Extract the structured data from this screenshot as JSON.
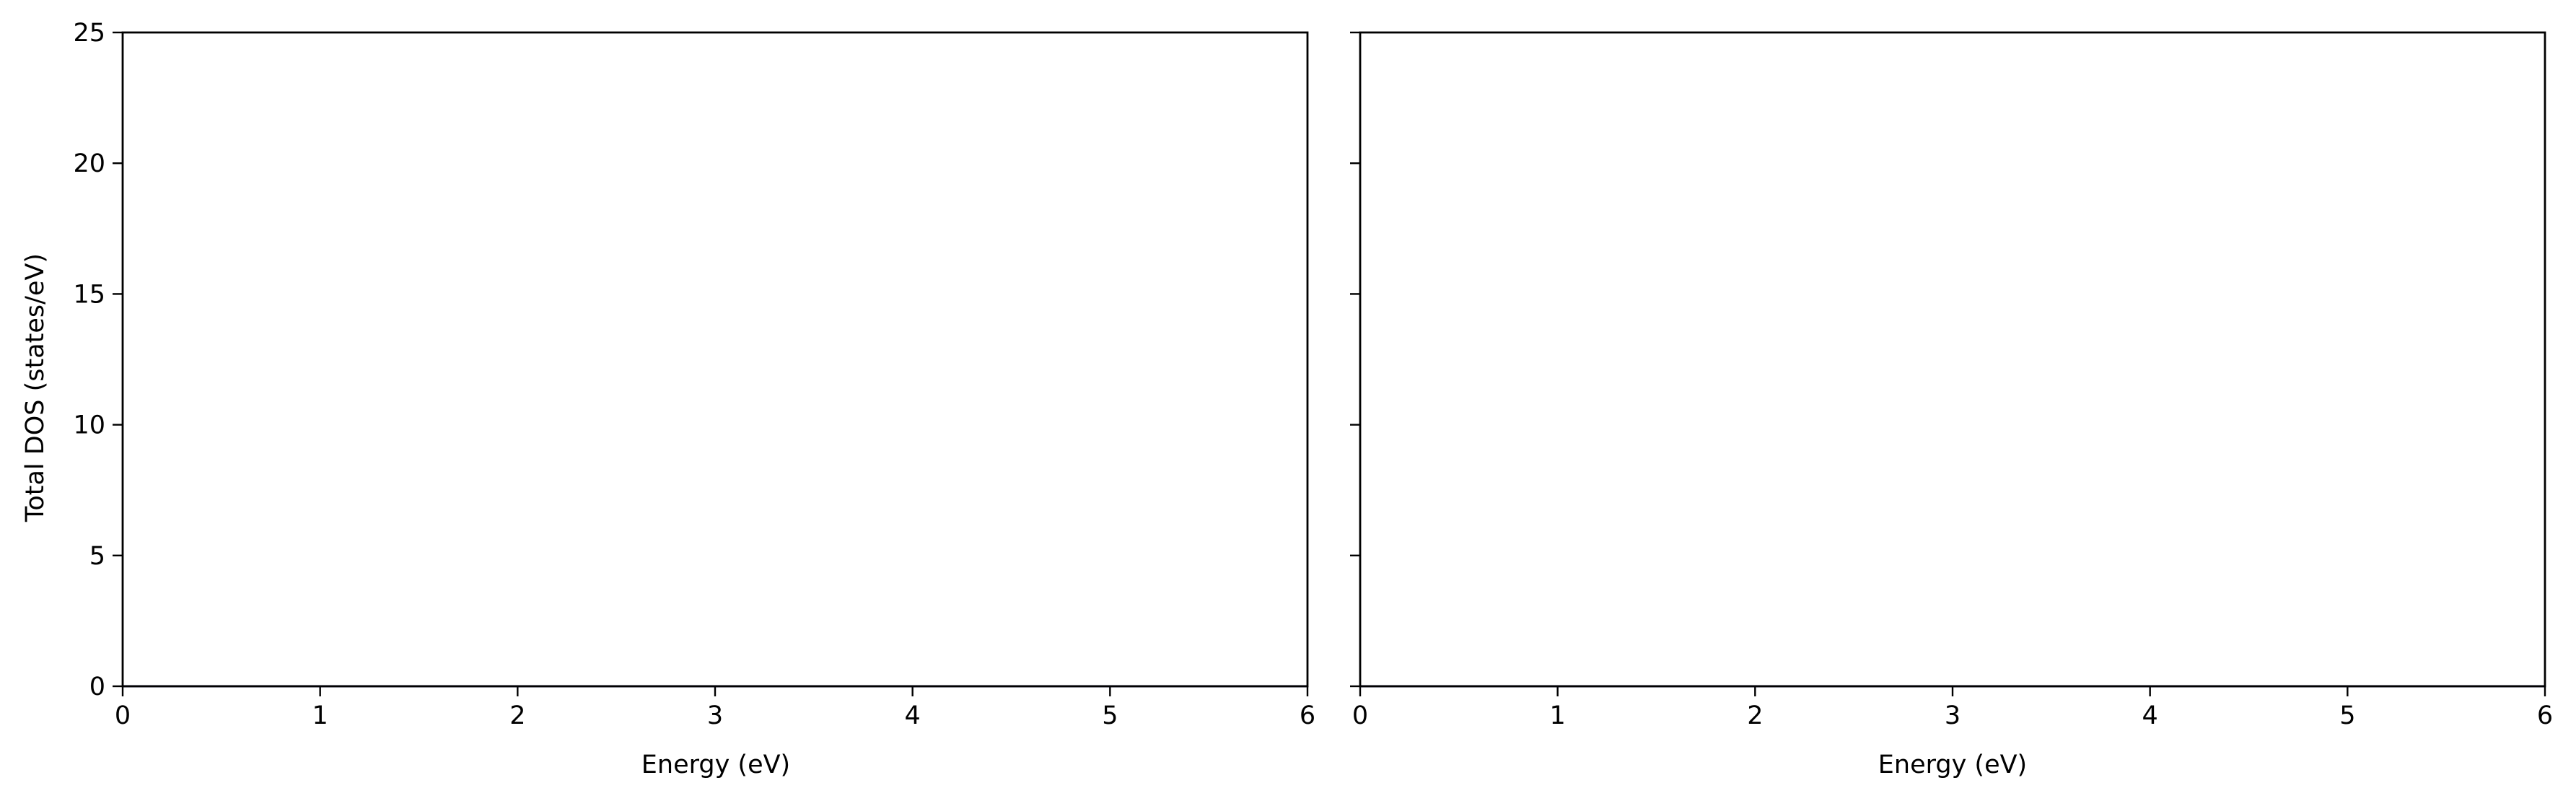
{
  "chart_data": [
    {
      "type": "line",
      "xlabel": "Energy (eV)",
      "ylabel": "Total DOS (states/eV)",
      "xlim": [
        0,
        6
      ],
      "ylim": [
        0,
        25
      ],
      "xticks": [
        "0",
        "1",
        "2",
        "3",
        "4",
        "5",
        "6"
      ],
      "yticks": [
        "0",
        "5",
        "10",
        "15",
        "20",
        "25"
      ],
      "grid": false,
      "legend": "none",
      "series": [
        {
          "color": "#1f1f7a",
          "x": [
            0,
            1,
            2,
            3,
            4,
            5,
            6
          ],
          "y": [
            0,
            0,
            0,
            0,
            0,
            0,
            0
          ]
        }
      ]
    },
    {
      "type": "line",
      "xlabel": "Energy (eV)",
      "ylabel": "",
      "xlim": [
        0,
        6
      ],
      "ylim": [
        0,
        25
      ],
      "xticks": [
        "0",
        "1",
        "2",
        "3",
        "4",
        "5",
        "6"
      ],
      "yticks": [
        "0",
        "5",
        "10",
        "15",
        "20",
        "25"
      ],
      "show_yticklabels": false,
      "grid": false,
      "legend": "none",
      "series": [
        {
          "color": "#1f1f7a",
          "x": [
            0,
            1,
            2,
            3,
            4,
            5,
            6
          ],
          "y": [
            0,
            0,
            0,
            0,
            0,
            0,
            0
          ]
        }
      ]
    }
  ]
}
